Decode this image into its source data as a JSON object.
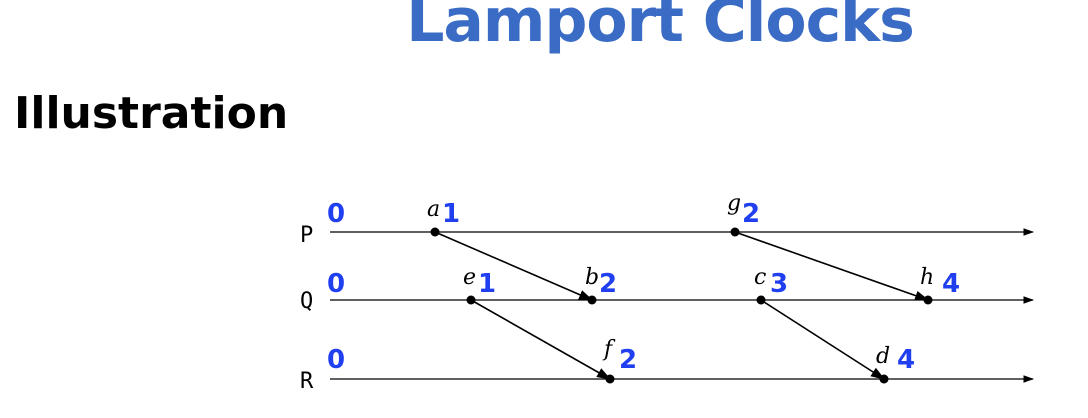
{
  "title": "Lamport Clocks",
  "subtitle": "Illustration",
  "colors": {
    "title": "#3a6cc5",
    "clock": "#1f3ff0",
    "line": "#000000"
  },
  "processes": [
    {
      "name": "P",
      "initial_clock": "0"
    },
    {
      "name": "Q",
      "initial_clock": "0"
    },
    {
      "name": "R",
      "initial_clock": "0"
    }
  ],
  "events": [
    {
      "id": "a",
      "label": "a",
      "process": "P",
      "clock": "1"
    },
    {
      "id": "g",
      "label": "g",
      "process": "P",
      "clock": "2"
    },
    {
      "id": "e",
      "label": "e",
      "process": "Q",
      "clock": "1"
    },
    {
      "id": "b",
      "label": "b",
      "process": "Q",
      "clock": "2"
    },
    {
      "id": "c",
      "label": "c",
      "process": "Q",
      "clock": "3"
    },
    {
      "id": "h",
      "label": "h",
      "process": "Q",
      "clock": "4"
    },
    {
      "id": "f",
      "label": "f",
      "process": "R",
      "clock": "2"
    },
    {
      "id": "d",
      "label": "d",
      "process": "R",
      "clock": "4"
    }
  ],
  "messages": [
    {
      "from": "a",
      "to": "b"
    },
    {
      "from": "g",
      "to": "h"
    },
    {
      "from": "e",
      "to": "f"
    },
    {
      "from": "c",
      "to": "d"
    }
  ]
}
